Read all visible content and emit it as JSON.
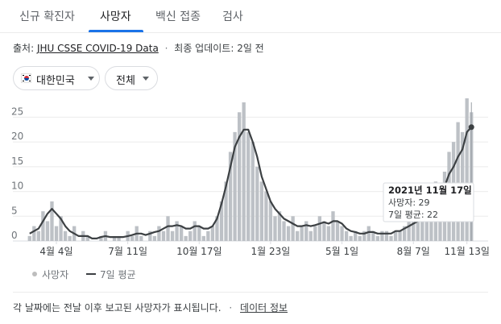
{
  "tabs": [
    {
      "label": "신규 확진자"
    },
    {
      "label": "사망자"
    },
    {
      "label": "백신 접종"
    },
    {
      "label": "검사"
    }
  ],
  "source": {
    "prefix": "출처:",
    "name": "JHU CSSE COVID-19 Data",
    "updated": "최종 업데이트: 2일 전"
  },
  "filters": {
    "region": "대한민국",
    "range": "전체"
  },
  "tooltip": {
    "date": "2021년 11월 17일",
    "deaths": "사망자: 29",
    "avg": "7일 평균: 22"
  },
  "legend": {
    "deaths": "사망자",
    "avg": "7일 평균"
  },
  "footnote": {
    "text": "각 날짜에는 전날 이후 보고된 사망자가 표시됩니다.",
    "link": "데이터 정보"
  },
  "colors": {
    "bar": "#bdc1c6",
    "line": "#3c4043",
    "accent": "#1a73e8"
  },
  "chart_data": {
    "type": "bar",
    "title": "",
    "xlabel": "",
    "ylabel": "",
    "ylim": [
      0,
      28
    ],
    "yticks": [
      0,
      5,
      10,
      15,
      20,
      25
    ],
    "xtick_labels": [
      "4월 4일",
      "7월 11일",
      "10월 17일",
      "1월 23일",
      "5월 1일",
      "8월 7일",
      "11월 13일"
    ],
    "series": [
      {
        "name": "사망자",
        "kind": "bar",
        "values": [
          1,
          3,
          2,
          6,
          4,
          8,
          3,
          5,
          2,
          1,
          3,
          0,
          2,
          1,
          0,
          0,
          1,
          2,
          0,
          1,
          1,
          0,
          2,
          1,
          3,
          1,
          0,
          2,
          1,
          3,
          2,
          5,
          2,
          4,
          3,
          1,
          2,
          4,
          3,
          1,
          2,
          3,
          5,
          8,
          12,
          18,
          22,
          26,
          28,
          22,
          20,
          15,
          12,
          10,
          8,
          5,
          6,
          4,
          3,
          5,
          2,
          3,
          4,
          2,
          3,
          5,
          4,
          3,
          6,
          4,
          3,
          2,
          1,
          2,
          1,
          2,
          3,
          2,
          1,
          2,
          2,
          1,
          2,
          2,
          3,
          4,
          5,
          4,
          6,
          5,
          7,
          12,
          10,
          14,
          18,
          20,
          24,
          22,
          29,
          26
        ]
      },
      {
        "name": "7일 평균",
        "kind": "line",
        "values": [
          1.5,
          2.0,
          2.5,
          4.0,
          5.5,
          6.5,
          5.5,
          4.5,
          3.0,
          2.0,
          1.5,
          1.0,
          1.0,
          1.0,
          0.5,
          0.5,
          0.8,
          1.0,
          0.8,
          0.8,
          0.8,
          0.8,
          1.0,
          1.2,
          1.5,
          1.5,
          1.2,
          1.5,
          1.8,
          2.0,
          2.5,
          3.0,
          3.0,
          3.2,
          3.0,
          2.5,
          2.5,
          3.0,
          3.0,
          2.5,
          2.5,
          3.0,
          4.5,
          7.5,
          11.0,
          15.0,
          19.0,
          21.0,
          22.5,
          22.5,
          20.0,
          17.0,
          13.0,
          10.5,
          8.0,
          6.5,
          5.5,
          4.5,
          4.0,
          3.5,
          3.0,
          3.0,
          3.2,
          3.0,
          3.2,
          3.5,
          3.8,
          3.5,
          4.0,
          4.0,
          3.5,
          2.5,
          2.0,
          1.8,
          1.5,
          1.5,
          1.8,
          1.8,
          1.5,
          1.5,
          1.5,
          1.5,
          2.0,
          2.0,
          2.5,
          3.0,
          3.5,
          4.0,
          4.5,
          5.0,
          6.0,
          8.0,
          9.5,
          11.0,
          13.5,
          15.0,
          17.0,
          18.5,
          22.0,
          23.0
        ]
      }
    ]
  }
}
